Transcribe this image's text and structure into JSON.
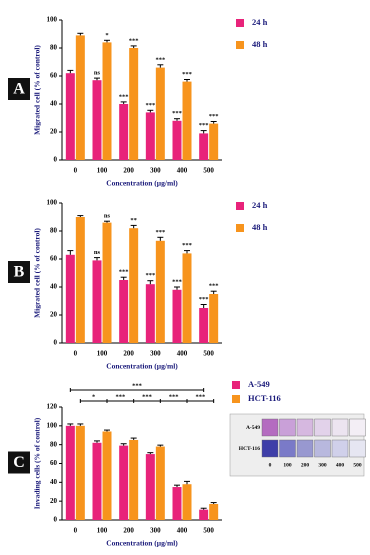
{
  "chart_data": [
    {
      "type": "bar",
      "panel_label": "A",
      "y_label": "Migrated cell (% of control)",
      "x_label": "Concentration (µg/ml)",
      "categories": [
        "0",
        "100",
        "200",
        "300",
        "400",
        "500"
      ],
      "series": [
        {
          "name": "24 h",
          "color": "#e8237a",
          "values": [
            62,
            57,
            40,
            34,
            28,
            19
          ],
          "errors": [
            2,
            1.5,
            1.5,
            1.5,
            1.5,
            2
          ],
          "annotations": [
            null,
            "ns",
            "***",
            "***",
            "***",
            "***"
          ]
        },
        {
          "name": "48 h",
          "color": "#f7941d",
          "values": [
            89,
            84,
            80,
            66,
            56,
            26
          ],
          "errors": [
            1.5,
            1.5,
            1.5,
            2,
            1.5,
            1.5
          ],
          "annotations": [
            null,
            "*",
            "***",
            "***",
            "***",
            "***"
          ]
        }
      ],
      "ylim": [
        0,
        100
      ],
      "yticks": [
        0,
        20,
        40,
        60,
        80,
        100
      ]
    },
    {
      "type": "bar",
      "panel_label": "B",
      "y_label": "Migrated cell (% of control)",
      "x_label": "Concentration (µg/ml)",
      "categories": [
        "0",
        "100",
        "200",
        "300",
        "400",
        "500"
      ],
      "series": [
        {
          "name": "24 h",
          "color": "#e8237a",
          "values": [
            63,
            59,
            45,
            42,
            38,
            25
          ],
          "errors": [
            3,
            2,
            2,
            2.5,
            2,
            2.5
          ],
          "annotations": [
            null,
            "ns",
            "***",
            "***",
            "***",
            "***"
          ]
        },
        {
          "name": "48 h",
          "color": "#f7941d",
          "values": [
            90,
            86,
            82,
            73,
            64,
            35
          ],
          "errors": [
            1,
            1,
            2,
            2.5,
            2,
            2
          ],
          "annotations": [
            null,
            "ns",
            "**",
            "***",
            "***",
            "***"
          ]
        }
      ],
      "ylim": [
        0,
        100
      ],
      "yticks": [
        0,
        20,
        40,
        60,
        80,
        100
      ]
    },
    {
      "type": "bar",
      "panel_label": "C",
      "y_label": "Invading cells (% of control)",
      "x_label": "Concentration (µg/ml)",
      "categories": [
        "0",
        "100",
        "200",
        "300",
        "400",
        "500"
      ],
      "series": [
        {
          "name": "A-549",
          "color": "#e8237a",
          "values": [
            100,
            82,
            79,
            70,
            35,
            11
          ],
          "errors": [
            2,
            2,
            2,
            1.5,
            2,
            1.5
          ]
        },
        {
          "name": "HCT-116",
          "color": "#f7941d",
          "values": [
            100,
            94,
            85,
            78,
            38,
            17
          ],
          "errors": [
            2,
            1.5,
            2,
            1.5,
            3,
            1.5
          ]
        }
      ],
      "bracket_labels": {
        "overall": "***",
        "pairwise": [
          "*",
          "***",
          "***",
          "***",
          "***"
        ]
      },
      "inset": {
        "row_labels": [
          "A-549",
          "HCT-116"
        ],
        "col_labels": [
          "0",
          "100",
          "200",
          "300",
          "400",
          "500"
        ]
      },
      "ylim": [
        0,
        120
      ],
      "yticks": [
        0,
        20,
        40,
        60,
        80,
        100,
        120
      ]
    }
  ]
}
